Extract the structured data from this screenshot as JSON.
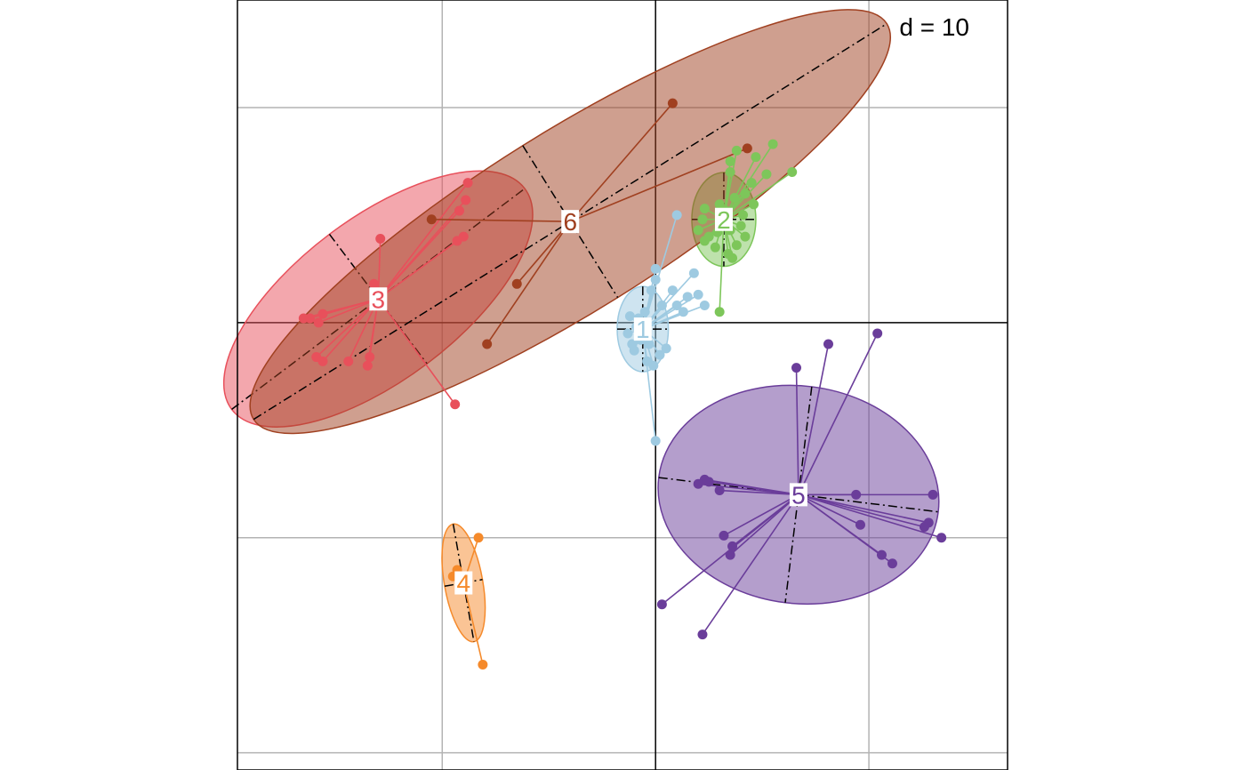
{
  "chart_data": {
    "type": "scatter",
    "scale_label": "d = 10",
    "grid": true,
    "xlim": [
      -19.6,
      16.5
    ],
    "ylim": [
      -20.8,
      15
    ],
    "colors": {
      "1": "#9ECAE1",
      "2": "#7DC65A",
      "3": "#E8505B",
      "4": "#F58A2B",
      "5": "#6A3D9A",
      "6": "#A04020"
    },
    "groups": [
      {
        "label": "1",
        "centroid": [
          -0.6,
          -0.3
        ],
        "ellipse": {
          "rx": 1.2,
          "ry": 2.0,
          "angle": 0
        },
        "points": [
          [
            1.0,
            5.0
          ],
          [
            0.0,
            2.5
          ],
          [
            0.0,
            2.0
          ],
          [
            -0.2,
            1.5
          ],
          [
            0.3,
            0.8
          ],
          [
            -0.5,
            0.5
          ],
          [
            -0.8,
            0.2
          ],
          [
            -1.2,
            0.3
          ],
          [
            -0.9,
            -0.2
          ],
          [
            -1.3,
            -0.5
          ],
          [
            -0.7,
            -0.8
          ],
          [
            -0.3,
            -1.0
          ],
          [
            -1.0,
            -1.3
          ],
          [
            0.5,
            -1.2
          ],
          [
            0.2,
            -1.5
          ],
          [
            -0.4,
            -1.8
          ],
          [
            -0.1,
            -2.0
          ],
          [
            -1.1,
            -1.0
          ],
          [
            1.5,
            1.2
          ],
          [
            2.0,
            1.3
          ],
          [
            2.3,
            0.8
          ],
          [
            1.3,
            0.5
          ],
          [
            1.0,
            0.8
          ],
          [
            1.8,
            2.3
          ],
          [
            0.8,
            1.5
          ],
          [
            0.0,
            -5.5
          ]
        ]
      },
      {
        "label": "2",
        "centroid": [
          3.2,
          4.8
        ],
        "ellipse": {
          "rx": 1.5,
          "ry": 2.2,
          "angle": 0
        },
        "points": [
          [
            5.5,
            8.3
          ],
          [
            6.4,
            7.0
          ],
          [
            4.7,
            7.7
          ],
          [
            5.2,
            6.9
          ],
          [
            4.5,
            6.5
          ],
          [
            4.2,
            6.0
          ],
          [
            3.0,
            5.5
          ],
          [
            2.3,
            5.3
          ],
          [
            2.2,
            4.8
          ],
          [
            2.0,
            4.3
          ],
          [
            2.3,
            3.8
          ],
          [
            2.5,
            4.0
          ],
          [
            3.5,
            4.3
          ],
          [
            4.0,
            4.5
          ],
          [
            4.1,
            5.0
          ],
          [
            4.2,
            4.0
          ],
          [
            3.8,
            3.6
          ],
          [
            3.6,
            3.0
          ],
          [
            3.4,
            3.2
          ],
          [
            2.9,
            4.2
          ],
          [
            3.3,
            5.2
          ],
          [
            3.7,
            5.8
          ],
          [
            4.6,
            5.5
          ],
          [
            2.8,
            3.5
          ],
          [
            3.5,
            7.5
          ],
          [
            3.5,
            7.0
          ],
          [
            3.8,
            8.0
          ],
          [
            3.0,
            0.5
          ]
        ]
      },
      {
        "label": "3",
        "centroid": [
          -13.0,
          1.1
        ],
        "ellipse": {
          "rx": 8.6,
          "ry": 3.8,
          "angle": 37
        },
        "points": [
          [
            -8.8,
            6.5
          ],
          [
            -8.9,
            5.7
          ],
          [
            -9.2,
            5.2
          ],
          [
            -9.3,
            3.8
          ],
          [
            -9.0,
            4.0
          ],
          [
            -12.9,
            3.9
          ],
          [
            -13.2,
            1.8
          ],
          [
            -16.5,
            0.2
          ],
          [
            -16.2,
            0.2
          ],
          [
            -15.8,
            0.0
          ],
          [
            -15.6,
            0.4
          ],
          [
            -15.9,
            -1.6
          ],
          [
            -15.6,
            -1.8
          ],
          [
            -14.4,
            -1.8
          ],
          [
            -13.4,
            -1.6
          ],
          [
            -13.5,
            -2.0
          ],
          [
            -9.4,
            -3.8
          ]
        ]
      },
      {
        "label": "4",
        "centroid": [
          -9.0,
          -12.1
        ],
        "ellipse": {
          "rx": 0.9,
          "ry": 2.8,
          "angle": 10
        },
        "points": [
          [
            -8.3,
            -10.0
          ],
          [
            -9.3,
            -11.5
          ],
          [
            -9.5,
            -11.8
          ],
          [
            -9.0,
            -12.2
          ],
          [
            -8.1,
            -15.9
          ]
        ]
      },
      {
        "label": "5",
        "centroid": [
          6.7,
          -8.0
        ],
        "ellipse": {
          "rx": 6.6,
          "ry": 5.1,
          "angle": -7
        },
        "points": [
          [
            6.6,
            -2.1
          ],
          [
            8.1,
            -1.0
          ],
          [
            10.4,
            -0.5
          ],
          [
            2.5,
            -7.4
          ],
          [
            2.3,
            -7.3
          ],
          [
            2.0,
            -7.5
          ],
          [
            3.0,
            -7.8
          ],
          [
            9.4,
            -8.0
          ],
          [
            13.0,
            -8.0
          ],
          [
            12.8,
            -9.3
          ],
          [
            12.6,
            -9.5
          ],
          [
            13.4,
            -10.0
          ],
          [
            9.6,
            -9.4
          ],
          [
            10.6,
            -10.8
          ],
          [
            11.1,
            -11.2
          ],
          [
            3.2,
            -9.9
          ],
          [
            3.6,
            -10.4
          ],
          [
            3.5,
            -10.8
          ],
          [
            0.3,
            -13.1
          ],
          [
            2.2,
            -14.5
          ]
        ]
      },
      {
        "label": "6",
        "centroid": [
          -4.0,
          4.7
        ],
        "ellipse": {
          "rx": 17.5,
          "ry": 4.2,
          "angle": 32
        },
        "points": [
          [
            0.8,
            10.2
          ],
          [
            4.3,
            8.1
          ],
          [
            -10.5,
            4.8
          ],
          [
            -6.5,
            1.8
          ],
          [
            -7.9,
            -1.0
          ]
        ]
      }
    ]
  }
}
